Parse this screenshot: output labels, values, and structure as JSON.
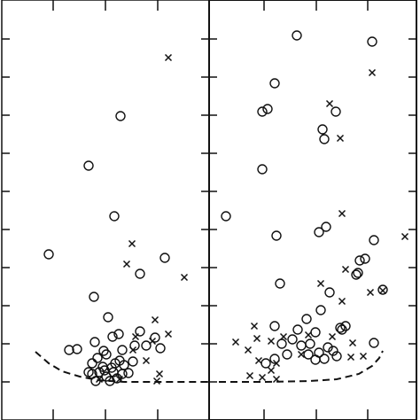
{
  "chart_data": [
    {
      "type": "scatter",
      "xlim": [
        0,
        234
      ],
      "ylim": [
        0,
        474
      ],
      "xticks": [
        58,
        117,
        176
      ],
      "yticks": [
        43,
        86,
        129,
        172,
        215,
        258,
        301,
        344,
        387,
        430
      ],
      "series": [
        {
          "marker": "circle",
          "color": "#111111",
          "x": [
            53,
            98,
            134,
            127,
            184,
            156,
            104,
            120,
            132,
            125,
            156,
            105,
            76,
            85,
            115,
            136,
            150,
            163,
            173,
            179,
            148,
            102,
            108,
            118,
            128,
            138,
            102,
            110,
            118,
            126,
            136,
            114,
            106,
            122,
            130,
            143,
            98,
            116,
            124,
            133
          ],
          "values": [
            187,
            287,
            343,
            230,
            183,
            165,
            139,
            116,
            97,
            94,
            100,
            88,
            79,
            80,
            78,
            79,
            84,
            84,
            93,
            81,
            66,
            64,
            70,
            74,
            64,
            62,
            52,
            54,
            49,
            54,
            52,
            60,
            44,
            44,
            47,
            53,
            54,
            56,
            59,
            67
          ]
        },
        {
          "marker": "cross",
          "color": "#111111",
          "x": [
            188,
            147,
            141,
            206,
            173,
            188,
            151,
            170,
            163,
            178,
            175,
            133,
            110,
            148
          ],
          "values": [
            409,
            199,
            176,
            161,
            113,
            97,
            94,
            89,
            67,
            52,
            44,
            46,
            46,
            79
          ]
        },
        {
          "marker": "dashed-line",
          "color": "#111111",
          "x": [
            38,
            53,
            68,
            88,
            108,
            138,
            178,
            234
          ],
          "values": [
            77,
            64,
            55,
            49,
            45,
            43,
            43,
            43
          ]
        }
      ]
    },
    {
      "type": "scatter",
      "xlim": [
        0,
        234
      ],
      "ylim": [
        0,
        474
      ],
      "xticks": [
        62,
        121,
        179
      ],
      "yticks": [
        43,
        86,
        129,
        172,
        215,
        258,
        301,
        344,
        387,
        430
      ],
      "series": [
        {
          "marker": "circle",
          "color": "#111111",
          "x": [
            99,
            184,
            74,
            60,
            66,
            143,
            128,
            130,
            60,
            19,
            76,
            124,
            132,
            186,
            170,
            176,
            168,
            166,
            80,
            136,
            196,
            110,
            126,
            74,
            100,
            120,
            148,
            154,
            82,
            94,
            104,
            112,
            124,
            134,
            140,
            144,
            88,
            74,
            64,
            120,
            130,
            186,
            150,
            114
          ],
          "values": [
            434,
            427,
            380,
            348,
            351,
            348,
            328,
            317,
            283,
            230,
            208,
            212,
            218,
            203,
            180,
            182,
            166,
            164,
            154,
            144,
            147,
            114,
            124,
            106,
            102,
            99,
            104,
            106,
            86,
            91,
            84,
            74,
            76,
            82,
            78,
            72,
            74,
            69,
            64,
            68,
            69,
            87,
            102,
            86
          ]
        },
        {
          "marker": "cross",
          "color": "#111111",
          "x": [
            184,
            136,
            148,
            150,
            221,
            154,
            126,
            182,
            150,
            196,
            51,
            30,
            54,
            70,
            84,
            162,
            44,
            56,
            76,
            104,
            70,
            46,
            60,
            76,
            160,
            174,
            139,
            112
          ],
          "values": [
            392,
            357,
            318,
            233,
            207,
            170,
            154,
            144,
            134,
            146,
            106,
            88,
            92,
            89,
            94,
            87,
            79,
            67,
            64,
            74,
            56,
            50,
            48,
            46,
            71,
            72,
            94,
            96
          ]
        },
        {
          "marker": "dashed-line",
          "color": "#111111",
          "x": [
            11,
            64,
            114,
            144,
            169,
            184,
            192,
            196
          ],
          "values": [
            43,
            43,
            44,
            46,
            52,
            61,
            70,
            78
          ]
        }
      ]
    }
  ]
}
